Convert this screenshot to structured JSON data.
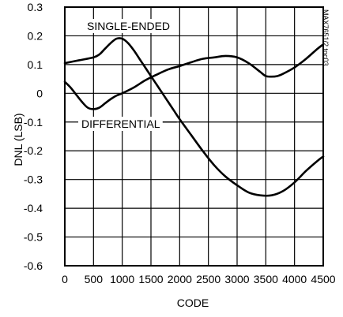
{
  "chart_data": {
    "type": "line",
    "title": "",
    "xlabel": "CODE",
    "ylabel": "DNL (LSB)",
    "xlim": [
      0,
      4500
    ],
    "ylim": [
      -0.6,
      0.3
    ],
    "x_ticks": [
      0,
      500,
      1000,
      1500,
      2000,
      2500,
      3000,
      3500,
      4000,
      4500
    ],
    "x_tick_labels": [
      "0",
      "500",
      "1000",
      "1500",
      "2000",
      "2500",
      "3000",
      "3500",
      "4000",
      "4500"
    ],
    "y_ticks": [
      0.3,
      0.2,
      0.1,
      0,
      -0.1,
      -0.2,
      -0.3,
      -0.4,
      -0.5,
      -0.6
    ],
    "y_tick_labels": [
      "0.3",
      "0.2",
      "0.1",
      "0",
      "-0.1",
      "-0.2",
      "-0.3",
      "-0.4",
      "-0.5",
      "-0.6"
    ],
    "grid": true,
    "legend": "none",
    "annotation": "MAX7651/2 toc03",
    "series": [
      {
        "name": "SINGLE-ENDED",
        "x": [
          0,
          250,
          500,
          600,
          700,
          800,
          900,
          1000,
          1100,
          1200,
          1300,
          1400,
          1500,
          1600,
          1700,
          1800,
          1900,
          2000,
          2200,
          2400,
          2600,
          2800,
          3000,
          3200,
          3400,
          3600,
          3800,
          4000,
          4200,
          4400,
          4500
        ],
        "y": [
          0.105,
          0.115,
          0.125,
          0.135,
          0.155,
          0.175,
          0.19,
          0.19,
          0.175,
          0.15,
          0.12,
          0.09,
          0.06,
          0.03,
          0.0,
          -0.03,
          -0.06,
          -0.09,
          -0.145,
          -0.2,
          -0.25,
          -0.29,
          -0.32,
          -0.345,
          -0.355,
          -0.355,
          -0.34,
          -0.31,
          -0.27,
          -0.235,
          -0.22
        ]
      },
      {
        "name": "DIFFERENTIAL",
        "x": [
          0,
          100,
          200,
          300,
          400,
          500,
          600,
          700,
          800,
          900,
          1000,
          1200,
          1400,
          1600,
          1800,
          2000,
          2200,
          2400,
          2600,
          2800,
          3000,
          3200,
          3400,
          3500,
          3600,
          3700,
          3800,
          4000,
          4200,
          4400,
          4500
        ],
        "y": [
          0.04,
          0.02,
          -0.005,
          -0.03,
          -0.05,
          -0.055,
          -0.05,
          -0.035,
          -0.02,
          -0.008,
          0.0,
          0.02,
          0.045,
          0.065,
          0.083,
          0.095,
          0.108,
          0.12,
          0.125,
          0.13,
          0.125,
          0.105,
          0.075,
          0.06,
          0.058,
          0.06,
          0.068,
          0.09,
          0.12,
          0.155,
          0.17
        ]
      }
    ]
  }
}
